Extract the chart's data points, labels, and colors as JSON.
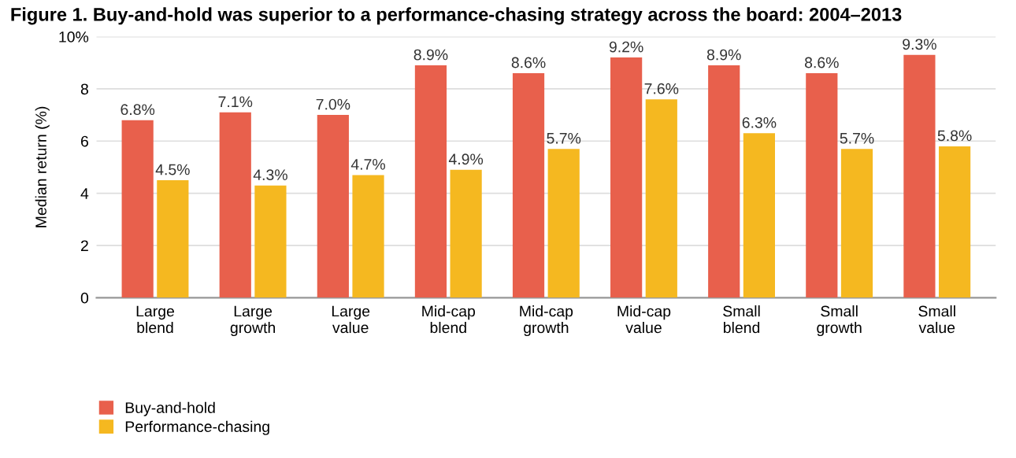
{
  "chart_data": {
    "type": "bar",
    "title": "Figure 1. Buy-and-hold was superior to a performance-chasing strategy across the board: 2004–2013",
    "ylabel": "Median return (%)",
    "categories": [
      "Large\nblend",
      "Large\ngrowth",
      "Large\nvalue",
      "Mid-cap\nblend",
      "Mid-cap\ngrowth",
      "Mid-cap\nvalue",
      "Small\nblend",
      "Small\ngrowth",
      "Small\nvalue"
    ],
    "series": [
      {
        "name": "Buy-and-hold",
        "color": "#e8604c",
        "values": [
          6.8,
          7.1,
          7.0,
          8.9,
          8.6,
          9.2,
          8.9,
          8.6,
          9.3
        ],
        "value_labels": [
          "6.8%",
          "7.1%",
          "7.0%",
          "8.9%",
          "8.6%",
          "9.2%",
          "8.9%",
          "8.6%",
          "9.3%"
        ]
      },
      {
        "name": "Performance-chasing",
        "color": "#f5b820",
        "values": [
          4.5,
          4.3,
          4.7,
          4.9,
          5.7,
          7.6,
          6.3,
          5.7,
          5.8
        ],
        "value_labels": [
          "4.5%",
          "4.3%",
          "4.7%",
          "4.9%",
          "5.7%",
          "7.6%",
          "6.3%",
          "5.7%",
          "5.8%"
        ]
      }
    ],
    "ylim": [
      0,
      10
    ],
    "yticks": [
      0,
      2,
      4,
      6,
      8,
      {
        "value": 10,
        "label": "10%"
      }
    ],
    "grid": "y",
    "legend": "bottom left"
  }
}
